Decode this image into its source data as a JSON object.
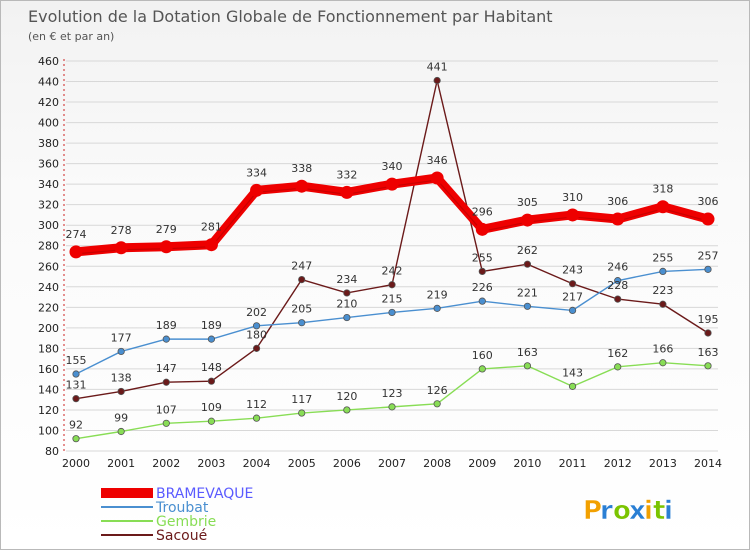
{
  "chart_data": {
    "type": "line",
    "title": "Evolution de la Dotation Globale de Fonctionnement par Habitant",
    "subtitle": "(en € et par an)",
    "xlabel": "",
    "ylabel": "",
    "categories": [
      "2000",
      "2001",
      "2002",
      "2003",
      "2004",
      "2005",
      "2006",
      "2007",
      "2008",
      "2009",
      "2010",
      "2011",
      "2012",
      "2013",
      "2014"
    ],
    "ylim": [
      80,
      460
    ],
    "ytick_step": 20,
    "grid": true,
    "legend_position": "bottom-left",
    "series": [
      {
        "name": "BRAMEVAQUE",
        "color": "#ee0000",
        "emphasis": true,
        "values": [
          274,
          278,
          279,
          281,
          334,
          338,
          332,
          340,
          346,
          296,
          305,
          310,
          306,
          318,
          306
        ]
      },
      {
        "name": "Troubat",
        "color": "#4a8fd0",
        "values": [
          155,
          177,
          189,
          189,
          202,
          205,
          210,
          215,
          219,
          226,
          221,
          217,
          246,
          255,
          257
        ]
      },
      {
        "name": "Gembrie",
        "color": "#88dd55",
        "values": [
          92,
          99,
          107,
          109,
          112,
          117,
          120,
          123,
          126,
          160,
          163,
          143,
          162,
          166,
          163
        ]
      },
      {
        "name": "Sacoué",
        "color": "#6b1a1a",
        "values": [
          131,
          138,
          147,
          148,
          180,
          247,
          234,
          242,
          441,
          255,
          262,
          243,
          228,
          223,
          195
        ]
      }
    ]
  },
  "brand": {
    "letters": [
      "P",
      "r",
      "o",
      "x",
      "i",
      "t",
      "i"
    ],
    "colors": [
      "#f2a000",
      "#2a7fd4",
      "#7bc400",
      "#2a7fd4",
      "#f2a000",
      "#7bc400",
      "#2a7fd4"
    ]
  }
}
